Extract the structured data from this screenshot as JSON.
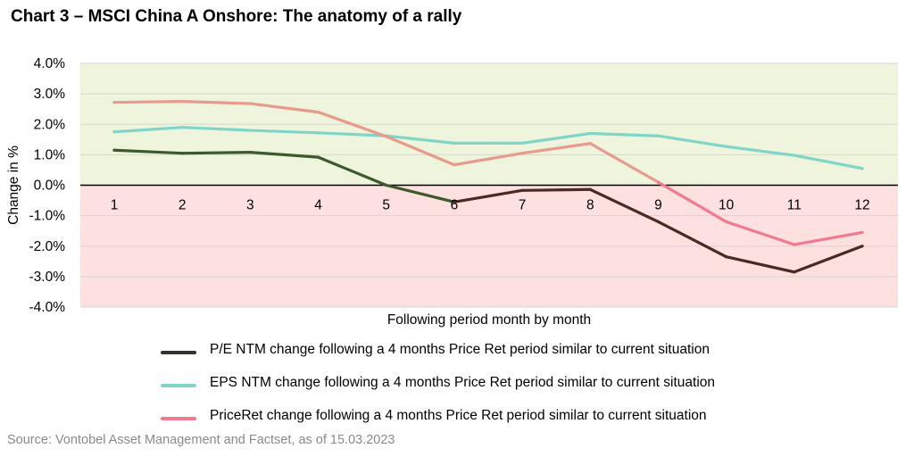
{
  "title": "Chart 3 – MSCI China A Onshore: The anatomy of a rally",
  "source": "Source: Vontobel Asset Management and Factset, as of 15.03.2023",
  "chart_data": {
    "type": "line",
    "title": "Chart 3 – MSCI China A Onshore: The anatomy of a rally",
    "xlabel": "Following period month by month",
    "ylabel": "Change in %",
    "ylim": [
      -4,
      4
    ],
    "y_ticks": [
      "4.0%",
      "3.0%",
      "2.0%",
      "1.0%",
      "0.0%",
      "-1.0%",
      "-2.0%",
      "-3.0%",
      "-4.0%"
    ],
    "y_tick_values": [
      4,
      3,
      2,
      1,
      0,
      -1,
      -2,
      -3,
      -4
    ],
    "x": [
      1,
      2,
      3,
      4,
      5,
      6,
      7,
      8,
      9,
      10,
      11,
      12
    ],
    "x_tick_labels": [
      "1",
      "2",
      "3",
      "4",
      "5",
      "6",
      "7",
      "8",
      "9",
      "10",
      "11",
      "12"
    ],
    "grid": true,
    "legend_position": "bottom",
    "positive_region_color": "#eef5dc",
    "negative_region_color": "#fde0e0",
    "series": [
      {
        "name": "P/E NTM change following a 4 months Price Ret period similar to current situation",
        "values": [
          1.15,
          1.05,
          1.08,
          0.92,
          0.0,
          -0.55,
          -0.17,
          -0.14,
          -1.2,
          -2.35,
          -2.85,
          -2.0
        ],
        "colors": [
          "#3d5a2e",
          "#3d5a2e",
          "#3d5a2e",
          "#3d5a2e",
          "#3d5a2e",
          "#4a2a24",
          "#4a2a24",
          "#4a2a24",
          "#4a2a24",
          "#4a2a24",
          "#4a2a24",
          "#4a2a24"
        ],
        "legend_color": "#3a2f2a"
      },
      {
        "name": "EPS NTM change following a 4 months Price Ret period similar to current situation",
        "values": [
          1.75,
          1.9,
          1.8,
          1.72,
          1.62,
          1.38,
          1.38,
          1.7,
          1.62,
          1.27,
          0.98,
          0.55
        ],
        "colors": [
          "#7fd6c8"
        ],
        "legend_color": "#7fd6c8"
      },
      {
        "name": "PriceRet change following a 4 months Price Ret period similar to current situation",
        "values": [
          2.72,
          2.75,
          2.68,
          2.4,
          1.6,
          0.67,
          1.05,
          1.37,
          0.1,
          -1.2,
          -1.95,
          -1.55
        ],
        "colors": [
          "#e89a8c",
          "#e89a8c",
          "#e89a8c",
          "#e89a8c",
          "#e89a8c",
          "#e89a8c",
          "#e89a8c",
          "#e89a8c",
          "#f07a90",
          "#f07a90",
          "#f07a90",
          "#f07a90"
        ],
        "legend_color": "#f07a90"
      }
    ]
  }
}
